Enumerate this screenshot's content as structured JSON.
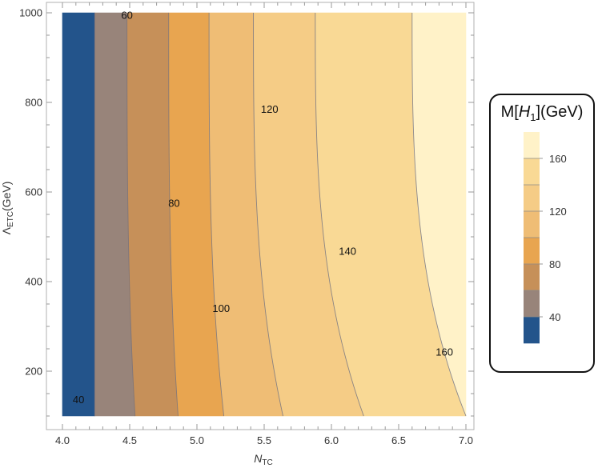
{
  "chart_data": {
    "type": "heatmap",
    "subtype": "filled-contour",
    "xlabel": "N_TC",
    "ylabel": "Λ_ETC(GeV)",
    "xlim": [
      4.0,
      7.0
    ],
    "ylim": [
      100,
      1000
    ],
    "x_ticks": [
      4.0,
      4.5,
      5.0,
      5.5,
      6.0,
      6.5,
      7.0
    ],
    "x_tick_labels": [
      "4.0",
      "4.5",
      "5.0",
      "5.5",
      "6.0",
      "6.5",
      "7.0"
    ],
    "y_ticks": [
      200,
      400,
      600,
      800,
      1000
    ],
    "y_tick_labels": [
      "200",
      "400",
      "600",
      "800",
      "1000"
    ],
    "contour_levels": [
      {
        "value": 40,
        "x_at_y1000": 4.24,
        "x_at_y100": 4.24
      },
      {
        "value": 60,
        "x_at_y1000": 4.48,
        "x_at_y100": 4.54
      },
      {
        "value": 80,
        "x_at_y1000": 4.79,
        "x_at_y100": 4.86
      },
      {
        "value": 100,
        "x_at_y1000": 5.09,
        "x_at_y100": 5.2
      },
      {
        "value": 120,
        "x_at_y1000": 5.42,
        "x_at_y100": 5.64
      },
      {
        "value": 140,
        "x_at_y1000": 5.88,
        "x_at_y100": 6.24
      },
      {
        "value": 160,
        "x_at_y1000": 6.6,
        "x_at_y100": 7.0
      }
    ],
    "contour_labels": [
      {
        "text": "40",
        "x": 4.12,
        "y": 137
      },
      {
        "text": "60",
        "x": 4.48,
        "y": 995
      },
      {
        "text": "80",
        "x": 4.83,
        "y": 575
      },
      {
        "text": "100",
        "x": 5.18,
        "y": 340
      },
      {
        "text": "120",
        "x": 5.54,
        "y": 785
      },
      {
        "text": "140",
        "x": 6.12,
        "y": 468
      },
      {
        "text": "160",
        "x": 6.84,
        "y": 243
      }
    ],
    "bands": [
      {
        "range": [
          20,
          40
        ],
        "color": "#23548b"
      },
      {
        "range": [
          40,
          60
        ],
        "color": "#98847a"
      },
      {
        "range": [
          60,
          80
        ],
        "color": "#c69059"
      },
      {
        "range": [
          80,
          100
        ],
        "color": "#e8a550"
      },
      {
        "range": [
          100,
          120
        ],
        "color": "#efbd75"
      },
      {
        "range": [
          120,
          140
        ],
        "color": "#f5cc86"
      },
      {
        "range": [
          140,
          160
        ],
        "color": "#f9d995"
      },
      {
        "range": [
          160,
          180
        ],
        "color": "#fff2c8"
      }
    ],
    "legend": {
      "title_prefix": "M[",
      "title_var": "H",
      "title_sub": "1",
      "title_suffix": "](GeV)",
      "tick_labels": [
        "40",
        "80",
        "120",
        "160"
      ],
      "placement": "right"
    }
  }
}
